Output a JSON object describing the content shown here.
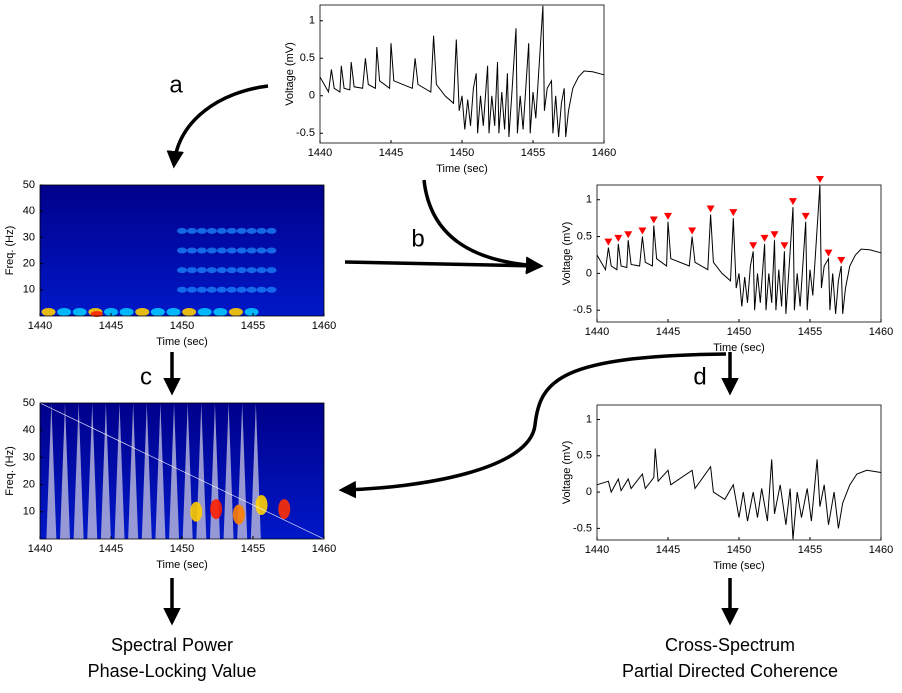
{
  "chart_data": [
    {
      "type": "line",
      "xlabel": "Time (sec)",
      "ylabel": "Voltage (mV)",
      "xlim": [
        1440,
        1460
      ],
      "ylim": [
        -0.63,
        1.21
      ],
      "xticks": [
        1440,
        1445,
        1450,
        1455,
        1460
      ],
      "yticks": [
        -0.5,
        0,
        0.5,
        1
      ],
      "series": [
        {
          "color": "#000000",
          "x": [
            1440,
            1440.6,
            1440.8,
            1441,
            1441.4,
            1441.5,
            1441.7,
            1442.1,
            1442.2,
            1442.4,
            1443,
            1443.2,
            1443.4,
            1443.9,
            1444,
            1444.2,
            1444.9,
            1445,
            1445.2,
            1446.5,
            1446.7,
            1446.9,
            1447.8,
            1448,
            1448.2,
            1448.8,
            1449.4,
            1449.6,
            1449.8,
            1450,
            1450.2,
            1450.4,
            1450.6,
            1450.8,
            1451,
            1451.1,
            1451.3,
            1451.5,
            1451.8,
            1451.9,
            1452.1,
            1452.3,
            1452.5,
            1452.6,
            1452.8,
            1453,
            1453.2,
            1453.3,
            1453.5,
            1453.8,
            1453.9,
            1454.1,
            1454.3,
            1454.7,
            1454.8,
            1455,
            1455.2,
            1455.7,
            1455.8,
            1456,
            1456.3,
            1456.4,
            1456.6,
            1456.8,
            1457,
            1457.2,
            1457.3,
            1457.5,
            1457.8,
            1458.2,
            1458.6,
            1459.2,
            1460
          ],
          "values": [
            0.25,
            0.05,
            0.35,
            0.1,
            0.05,
            0.4,
            0.1,
            0.08,
            0.45,
            0.12,
            0.1,
            0.5,
            0.15,
            0.1,
            0.65,
            0.2,
            0.1,
            0.7,
            0.2,
            0.1,
            0.5,
            0.15,
            0.05,
            0.8,
            0.15,
            0,
            -0.1,
            0.75,
            -0.2,
            0,
            -0.45,
            -0.05,
            -0.4,
            0.1,
            0.3,
            -0.5,
            0,
            -0.4,
            0.4,
            -0.5,
            0,
            -0.4,
            0.45,
            -0.5,
            0.05,
            -0.45,
            0.3,
            -0.55,
            0,
            0.9,
            -0.5,
            0,
            -0.45,
            0.7,
            -0.5,
            0.05,
            -0.3,
            1.2,
            -0.2,
            0.1,
            0.2,
            -0.5,
            0,
            -0.55,
            -0.1,
            0.1,
            -0.55,
            -0.2,
            0.1,
            0.25,
            0.33,
            0.32,
            0.28
          ]
        }
      ]
    },
    {
      "type": "heatmap",
      "xlabel": "Time (sec)",
      "ylabel": "Freq. (Hz)",
      "xlim": [
        1440,
        1460
      ],
      "ylim": [
        0,
        50
      ],
      "xticks": [
        1440,
        1445,
        1450,
        1455,
        1460
      ],
      "yticks": [
        10,
        20,
        30,
        40,
        50
      ]
    },
    {
      "type": "line",
      "xlabel": "Time (sec)",
      "ylabel": "Voltage (mV)",
      "xlim": [
        1440,
        1460
      ],
      "ylim": [
        -0.66,
        1.2
      ],
      "xticks": [
        1440,
        1445,
        1450,
        1455,
        1460
      ],
      "yticks": [
        -0.5,
        0,
        0.5,
        1
      ],
      "series": [
        {
          "color": "#000000",
          "x": [
            1440,
            1440.6,
            1440.8,
            1441,
            1441.4,
            1441.5,
            1441.7,
            1442.1,
            1442.2,
            1442.4,
            1443,
            1443.2,
            1443.4,
            1443.9,
            1444,
            1444.2,
            1444.9,
            1445,
            1445.2,
            1446.5,
            1446.7,
            1446.9,
            1447.8,
            1448,
            1448.2,
            1448.8,
            1449.4,
            1449.6,
            1449.8,
            1450,
            1450.2,
            1450.4,
            1450.6,
            1450.8,
            1451,
            1451.1,
            1451.3,
            1451.5,
            1451.8,
            1451.9,
            1452.1,
            1452.3,
            1452.5,
            1452.6,
            1452.8,
            1453,
            1453.2,
            1453.3,
            1453.5,
            1453.8,
            1453.9,
            1454.1,
            1454.3,
            1454.7,
            1454.8,
            1455,
            1455.2,
            1455.7,
            1455.8,
            1456,
            1456.3,
            1456.4,
            1456.6,
            1456.8,
            1457,
            1457.2,
            1457.3,
            1457.5,
            1457.8,
            1458.2,
            1458.6,
            1459.2,
            1460
          ],
          "values": [
            0.25,
            0.05,
            0.35,
            0.1,
            0.05,
            0.4,
            0.1,
            0.08,
            0.45,
            0.12,
            0.1,
            0.5,
            0.15,
            0.1,
            0.65,
            0.2,
            0.1,
            0.7,
            0.2,
            0.1,
            0.5,
            0.15,
            0.05,
            0.8,
            0.15,
            0,
            -0.1,
            0.75,
            -0.2,
            0,
            -0.45,
            -0.05,
            -0.4,
            0.1,
            0.3,
            -0.5,
            0,
            -0.4,
            0.4,
            -0.5,
            0,
            -0.4,
            0.45,
            -0.5,
            0.05,
            -0.45,
            0.3,
            -0.55,
            0,
            0.9,
            -0.5,
            0,
            -0.45,
            0.7,
            -0.5,
            0.05,
            -0.3,
            1.2,
            -0.2,
            0.1,
            0.2,
            -0.5,
            0,
            -0.55,
            -0.1,
            0.1,
            -0.55,
            -0.2,
            0.1,
            0.25,
            0.33,
            0.32,
            0.28
          ]
        },
        {
          "color": "#ff0000",
          "marker": "triangle-down",
          "x": [
            1440.8,
            1441.5,
            1442.2,
            1443.2,
            1444,
            1445,
            1446.7,
            1448,
            1449.6,
            1451,
            1451.8,
            1452.5,
            1453.2,
            1453.8,
            1454.7,
            1455.7,
            1456.3,
            1457.2
          ],
          "values": [
            0.35,
            0.4,
            0.45,
            0.5,
            0.65,
            0.7,
            0.5,
            0.8,
            0.75,
            0.3,
            0.4,
            0.45,
            0.3,
            0.9,
            0.7,
            1.2,
            0.2,
            0.1
          ]
        }
      ]
    },
    {
      "type": "heatmap",
      "xlabel": "Time (sec)",
      "ylabel": "Freq. (Hz)",
      "xlim": [
        1440,
        1460
      ],
      "ylim": [
        0,
        50
      ],
      "xticks": [
        1440,
        1445,
        1450,
        1455,
        1460
      ],
      "yticks": [
        10,
        20,
        30,
        40,
        50
      ]
    },
    {
      "type": "line",
      "xlabel": "Time (sec)",
      "ylabel": "Voltage (mV)",
      "xlim": [
        1440,
        1460
      ],
      "ylim": [
        -0.66,
        1.2
      ],
      "xticks": [
        1440,
        1445,
        1450,
        1455,
        1460
      ],
      "yticks": [
        -0.5,
        0,
        0.5,
        1
      ],
      "series": [
        {
          "color": "#000000",
          "x": [
            1440,
            1440.8,
            1441,
            1441.5,
            1441.7,
            1442.2,
            1442.4,
            1443.2,
            1443.4,
            1444,
            1444.1,
            1444.3,
            1445,
            1445.2,
            1446.7,
            1446.9,
            1448,
            1448.2,
            1449,
            1449.6,
            1450,
            1450.3,
            1450.6,
            1451,
            1451.3,
            1451.6,
            1452,
            1452.3,
            1452.5,
            1452.9,
            1453.3,
            1453.6,
            1453.8,
            1454.1,
            1454.4,
            1454.8,
            1455.1,
            1455.5,
            1455.7,
            1456,
            1456.3,
            1456.7,
            1457,
            1457.3,
            1457.8,
            1458.3,
            1459,
            1460
          ],
          "values": [
            0.1,
            0.15,
            0,
            0.18,
            0.02,
            0.18,
            0.05,
            0.25,
            0.05,
            0.2,
            0.6,
            0.15,
            0.3,
            0.1,
            0.3,
            0.05,
            0.35,
            0,
            -0.1,
            0.1,
            -0.35,
            0,
            -0.4,
            0,
            -0.35,
            0.05,
            -0.4,
            0.45,
            -0.3,
            0.1,
            -0.45,
            0.05,
            -0.65,
            0,
            -0.35,
            0.05,
            -0.4,
            0.45,
            -0.2,
            0.1,
            -0.45,
            0,
            -0.5,
            -0.15,
            0.1,
            0.25,
            0.3,
            0.27
          ]
        }
      ]
    }
  ],
  "steps": [
    "a",
    "b",
    "c",
    "d"
  ],
  "outputs": [
    [
      "Spectral Power",
      "Phase-Locking Value"
    ],
    [
      "Cross-Spectrum",
      "Partial Directed Coherence"
    ]
  ]
}
